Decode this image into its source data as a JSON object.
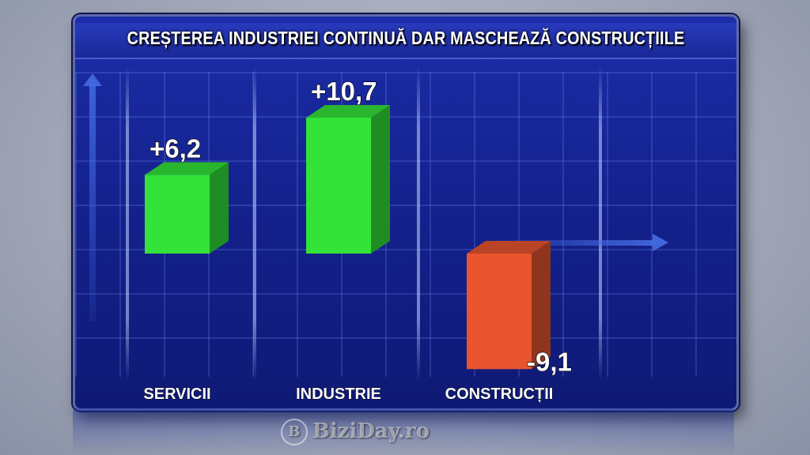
{
  "title": "CREȘTEREA INDUSTRIEI CONTINUĂ DAR MASCHEAZĂ CONSTRUCȚIILE",
  "watermark": "BiziDay.ro",
  "colors": {
    "positive": "#33e33a",
    "negative": "#e8552e",
    "background": "#15238f"
  },
  "chart_data": {
    "type": "bar",
    "title": "CREȘTEREA INDUSTRIEI CONTINUĂ DAR MASCHEAZĂ CONSTRUCȚIILE",
    "categories": [
      "SERVICII",
      "INDUSTRIE",
      "CONSTRUCȚII"
    ],
    "values": [
      6.2,
      10.7,
      -9.1
    ],
    "labels": [
      "+6,2",
      "+10,7",
      "-9,1"
    ],
    "ylim": [
      -9.1,
      10.7
    ],
    "grid": true
  }
}
